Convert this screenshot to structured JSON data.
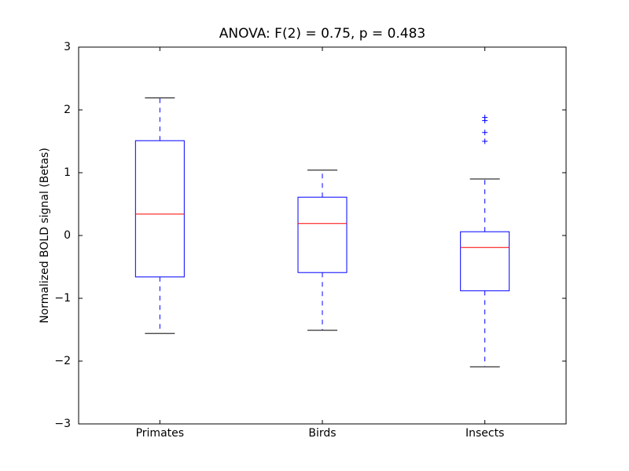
{
  "chart_data": {
    "type": "box",
    "title": "ANOVA: F(2) = 0.75, p = 0.483",
    "y_label": "Normalized BOLD signal (Betas)",
    "categories": [
      "Primates",
      "Birds",
      "Insects"
    ],
    "boxes": [
      {
        "whislo": -1.56,
        "q1": -0.66,
        "med": 0.34,
        "q3": 1.51,
        "whishi": 2.19,
        "fliers": []
      },
      {
        "whislo": -1.51,
        "q1": -0.59,
        "med": 0.19,
        "q3": 0.61,
        "whishi": 1.04,
        "fliers": []
      },
      {
        "whislo": -2.09,
        "q1": -0.88,
        "med": -0.19,
        "q3": 0.06,
        "whishi": 0.9,
        "fliers": [
          1.88,
          1.83,
          1.64,
          1.5
        ]
      }
    ],
    "box_color": "#0000ff",
    "median_color": "#ff0000",
    "cap_color": "#000000",
    "ylim": [
      -3,
      3
    ],
    "yticks": [
      {
        "value": -3,
        "label": "−3"
      },
      {
        "value": -2,
        "label": "−2"
      },
      {
        "value": -1,
        "label": "−1"
      },
      0,
      1,
      2,
      3
    ]
  }
}
